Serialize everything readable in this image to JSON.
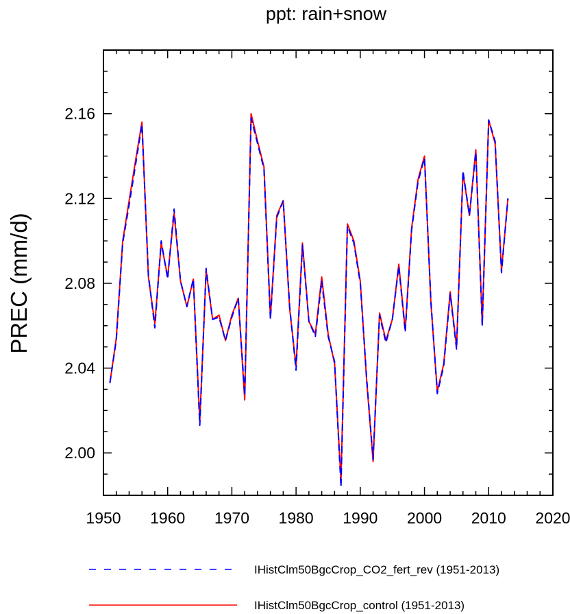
{
  "chart_data": {
    "type": "line",
    "title": "ppt: rain+snow",
    "xlabel": "",
    "ylabel": "PREC  (mm/d)",
    "xlim": [
      1950,
      2020
    ],
    "ylim": [
      1.98,
      2.19
    ],
    "x_ticks": [
      1950,
      1960,
      1970,
      1980,
      1990,
      2000,
      2010,
      2020
    ],
    "x_tick_labels": [
      "1950",
      "1960",
      "1970",
      "1980",
      "1990",
      "2000",
      "2010",
      "2020"
    ],
    "y_ticks": [
      2.0,
      2.04,
      2.08,
      2.12,
      2.16
    ],
    "y_tick_labels": [
      "2.00",
      "2.04",
      "2.08",
      "2.12",
      "2.16"
    ],
    "grid": false,
    "legend_position": "bottom",
    "x": [
      1951,
      1952,
      1953,
      1954,
      1955,
      1956,
      1957,
      1958,
      1959,
      1960,
      1961,
      1962,
      1963,
      1964,
      1965,
      1966,
      1967,
      1968,
      1969,
      1970,
      1971,
      1972,
      1973,
      1974,
      1975,
      1976,
      1977,
      1978,
      1979,
      1980,
      1981,
      1982,
      1983,
      1984,
      1985,
      1986,
      1987,
      1988,
      1989,
      1990,
      1991,
      1992,
      1993,
      1994,
      1995,
      1996,
      1997,
      1998,
      1999,
      2000,
      2001,
      2002,
      2003,
      2004,
      2005,
      2006,
      2007,
      2008,
      2009,
      2010,
      2011,
      2012,
      2013
    ],
    "series": [
      {
        "name": "IHistClm50BgcCrop_CO2_fert_rev (1951-2013)",
        "color": "#0000ff",
        "dash": "dashed",
        "values": [
          2.033,
          2.053,
          2.099,
          2.117,
          2.136,
          2.155,
          2.084,
          2.059,
          2.1,
          2.082,
          2.115,
          2.081,
          2.069,
          2.082,
          2.013,
          2.087,
          2.063,
          2.064,
          2.053,
          2.064,
          2.073,
          2.027,
          2.158,
          2.146,
          2.134,
          2.063,
          2.111,
          2.119,
          2.069,
          2.039,
          2.098,
          2.062,
          2.055,
          2.081,
          2.055,
          2.043,
          1.984,
          2.107,
          2.099,
          2.08,
          2.035,
          1.997,
          2.065,
          2.052,
          2.063,
          2.088,
          2.057,
          2.105,
          2.128,
          2.139,
          2.072,
          2.028,
          2.041,
          2.075,
          2.049,
          2.133,
          2.112,
          2.142,
          2.06,
          2.157,
          2.147,
          2.085,
          2.12
        ]
      },
      {
        "name": "IHistClm50BgcCrop_control (1951-2013)",
        "color": "#ff0000",
        "dash": "solid",
        "values": [
          2.033,
          2.054,
          2.1,
          2.119,
          2.138,
          2.156,
          2.083,
          2.061,
          2.099,
          2.083,
          2.113,
          2.081,
          2.069,
          2.082,
          2.015,
          2.086,
          2.063,
          2.065,
          2.053,
          2.065,
          2.073,
          2.025,
          2.16,
          2.147,
          2.135,
          2.064,
          2.112,
          2.119,
          2.068,
          2.041,
          2.099,
          2.062,
          2.056,
          2.083,
          2.056,
          2.042,
          1.987,
          2.108,
          2.1,
          2.081,
          2.034,
          1.996,
          2.066,
          2.053,
          2.063,
          2.089,
          2.058,
          2.106,
          2.129,
          2.14,
          2.071,
          2.029,
          2.042,
          2.076,
          2.05,
          2.132,
          2.112,
          2.143,
          2.061,
          2.157,
          2.146,
          2.086,
          2.12
        ]
      }
    ]
  }
}
